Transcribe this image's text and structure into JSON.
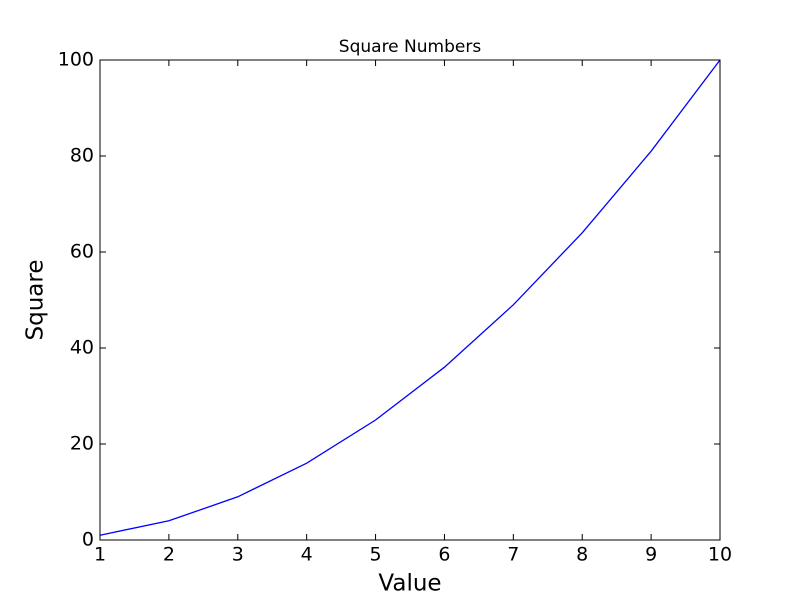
{
  "chart_data": {
    "type": "line",
    "title": "Square Numbers",
    "x_label": "Value",
    "y_label": "Square",
    "x": [
      1,
      2,
      3,
      4,
      5,
      6,
      7,
      8,
      9,
      10
    ],
    "values": [
      1,
      4,
      9,
      16,
      25,
      36,
      49,
      64,
      81,
      100
    ],
    "color": "#0000ff",
    "xlim": [
      1,
      10
    ],
    "xticks": [
      1,
      2,
      3,
      4,
      5,
      6,
      7,
      8,
      9,
      10
    ],
    "ylim": [
      0,
      100
    ],
    "yticks": [
      0,
      20,
      40,
      60,
      80,
      100
    ],
    "grid": false
  }
}
